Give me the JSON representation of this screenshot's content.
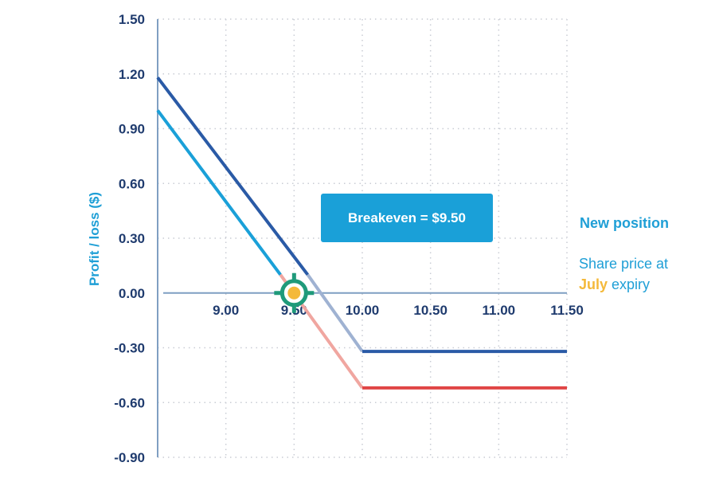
{
  "chart_data": {
    "type": "line",
    "ylabel": "Profit / loss ($)",
    "xlim": [
      8.5,
      11.5
    ],
    "ylim": [
      -0.9,
      1.5
    ],
    "xticks": [
      "9.00",
      "9.50",
      "10.00",
      "10.50",
      "11.00",
      "11.50"
    ],
    "yticks": [
      "1.50",
      "1.20",
      "0.90",
      "0.60",
      "0.30",
      "0.00",
      "-0.30",
      "-0.60",
      "-0.90"
    ],
    "grid": "dotted",
    "series": [
      {
        "name": "",
        "color": "#2a5aa6",
        "faded_color": "#9fb2d2",
        "points": [
          [
            8.5,
            1.18
          ],
          [
            9.6,
            0.1
          ],
          [
            10.0,
            -0.32
          ],
          [
            11.5,
            -0.32
          ]
        ]
      },
      {
        "name": "",
        "color": "#1aa0d8",
        "faded_color": "#f0a6a0",
        "loss_color": "#e04545",
        "points": [
          [
            8.5,
            1.0
          ],
          [
            9.4,
            0.1
          ],
          [
            10.0,
            -0.52
          ],
          [
            11.5,
            -0.52
          ]
        ]
      }
    ],
    "breakeven_marker": {
      "x": 9.5,
      "y": 0.0,
      "dot_color": "#f4b93a",
      "ring_color": "#1f9a7a"
    },
    "annotation": "Breakeven = $9.50",
    "legend": {
      "new_position": "New position",
      "share_price_before": "Share price at",
      "share_price_highlight": "July",
      "share_price_after": " expiry"
    }
  }
}
